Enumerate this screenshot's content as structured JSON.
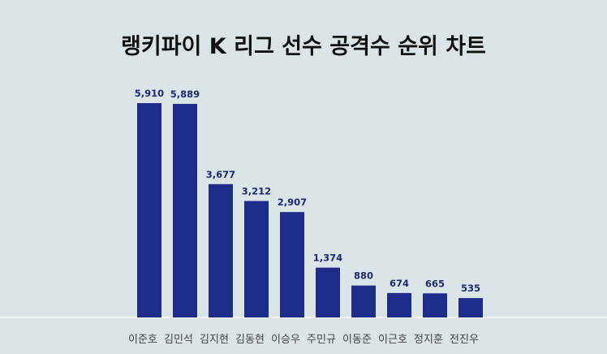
{
  "chart_data": {
    "type": "bar",
    "title": "랭키파이 K 리그 선수 공격수 순위 차트",
    "categories": [
      "이준호",
      "김민석",
      "김지현",
      "김동현",
      "이승우",
      "주민규",
      "이동준",
      "이근호",
      "정지훈",
      "전진우"
    ],
    "values": [
      5910,
      5889,
      3677,
      3212,
      2907,
      1374,
      880,
      674,
      665,
      535
    ],
    "value_labels": [
      "5,910",
      "5,889",
      "3,677",
      "3,212",
      "2,907",
      "1,374",
      "880",
      "674",
      "665",
      "535"
    ],
    "ylim": [
      0,
      6000
    ],
    "grid": false,
    "legend": "none",
    "xlabel": "",
    "ylabel": ""
  },
  "colors": {
    "background": "#dbe5e8",
    "plot_background": "#dbe5e8",
    "bar": "#1f2d8a",
    "value_label": "#1c2a78",
    "title": "#111111",
    "baseline": "#f2f6f7",
    "category_label": "#444444"
  }
}
